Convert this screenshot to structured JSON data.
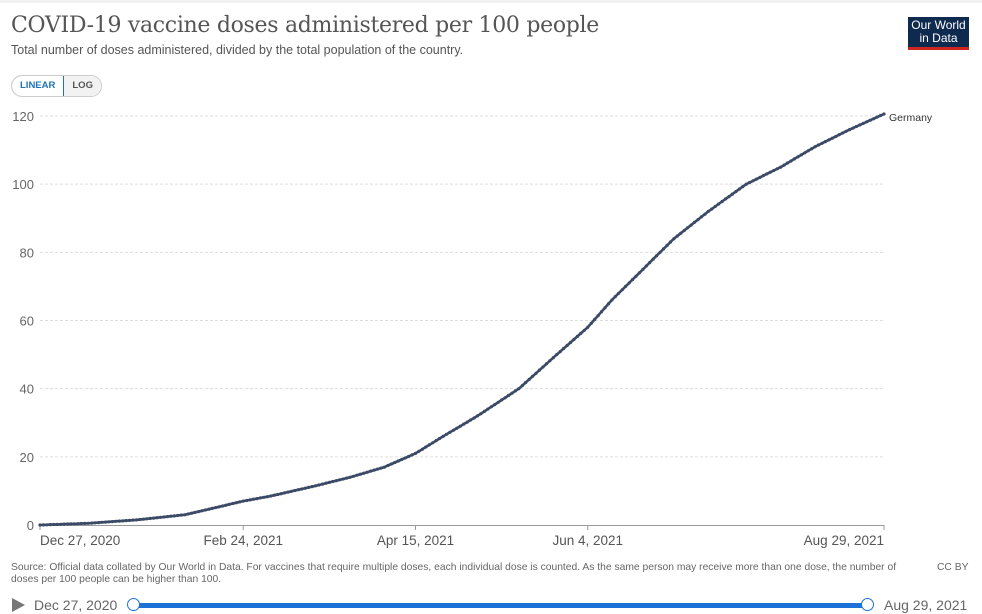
{
  "header": {
    "title": "COVID-19 vaccine doses administered per 100 people",
    "subtitle": "Total number of doses administered, divided by the total population of the country.",
    "logo_line1": "Our World",
    "logo_line2": "in Data"
  },
  "controls": {
    "linear_label": "LINEAR",
    "log_label": "LOG",
    "active_scale": "linear"
  },
  "footer": {
    "source": "Source: Official data collated by Our World in Data. For vaccines that require multiple doses, each individual dose is counted. As the same person may receive more than one dose, the number of doses per 100 people can be higher than 100.",
    "license": "CC BY"
  },
  "timeline": {
    "start_label": "Dec 27, 2020",
    "end_label": "Aug 29, 2021",
    "play_icon": "play-icon"
  },
  "colors": {
    "series": "#3b4a66",
    "accent": "#1d72d8",
    "logo_bg": "#0f2a4f",
    "logo_bar": "#ce261e"
  },
  "chart_data": {
    "type": "line",
    "title": "COVID-19 vaccine doses administered per 100 people",
    "subtitle": "Total number of doses administered, divided by the total population of the country.",
    "xlabel": "",
    "ylabel": "",
    "x_start_date": "Dec 27, 2020",
    "x_range_days": [
      0,
      245
    ],
    "ylim": [
      0,
      120
    ],
    "yticks": [
      0,
      20,
      40,
      60,
      80,
      100,
      120
    ],
    "xticks": [
      {
        "day": 0,
        "label": "Dec 27, 2020"
      },
      {
        "day": 59,
        "label": "Feb 24, 2021"
      },
      {
        "day": 109,
        "label": "Apr 15, 2021"
      },
      {
        "day": 159,
        "label": "Jun 4, 2021"
      },
      {
        "day": 245,
        "label": "Aug 29, 2021"
      }
    ],
    "grid": "horizontal-dashed",
    "legend": "inline-end-label",
    "series": [
      {
        "name": "Germany",
        "days": [
          0,
          14,
          28,
          42,
          59,
          67,
          80,
          90,
          100,
          109,
          117,
          127,
          139,
          150,
          159,
          166,
          175,
          184,
          194,
          205,
          215,
          225,
          235,
          245
        ],
        "values": [
          0,
          0.5,
          1.5,
          3,
          7,
          8.5,
          11.5,
          14,
          17,
          21,
          26,
          32,
          40,
          50,
          58,
          66,
          75,
          84,
          92,
          100,
          105,
          111,
          116,
          120.6
        ]
      }
    ]
  }
}
